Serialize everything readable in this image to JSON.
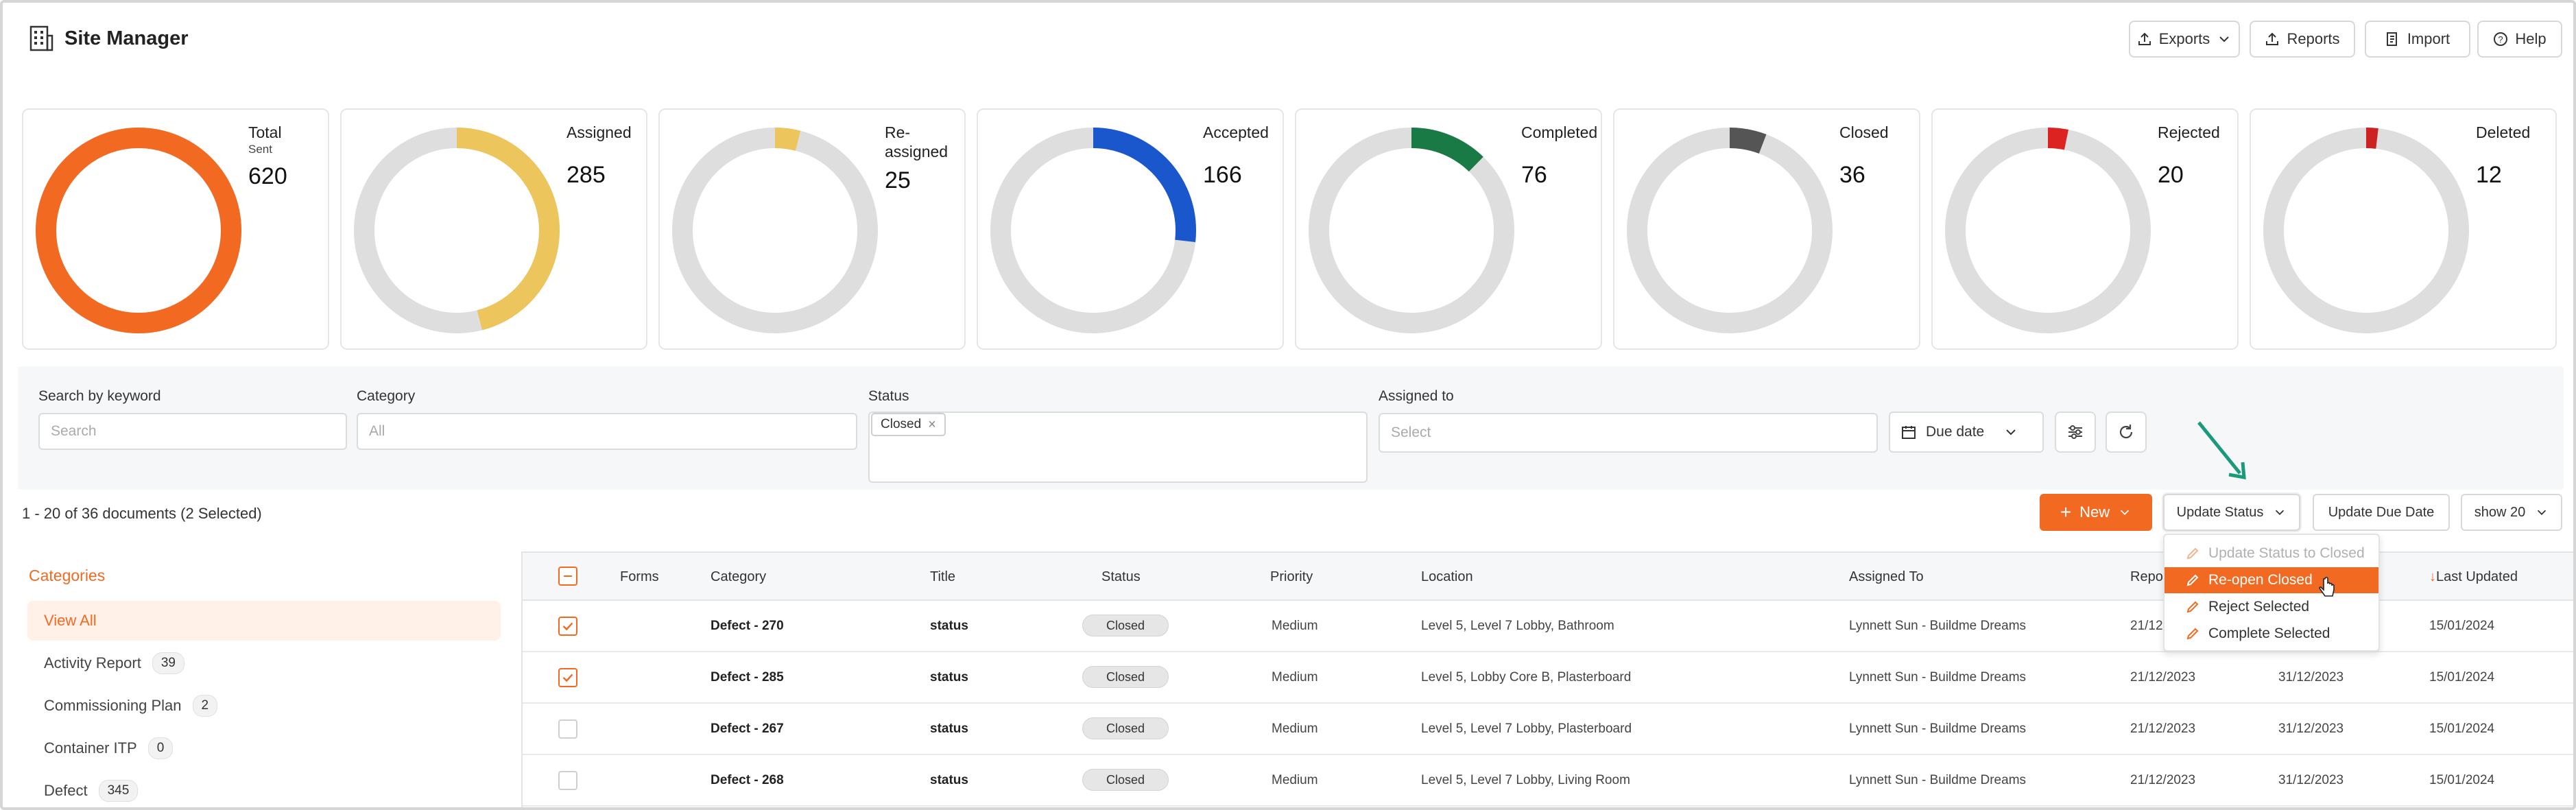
{
  "app": {
    "title": "Site Manager"
  },
  "header_buttons": {
    "exports": "Exports",
    "reports": "Reports",
    "import": "Import",
    "help": "Help"
  },
  "stats": [
    {
      "label": "Total",
      "sub": "Sent",
      "value": "620",
      "fraction": 1.0,
      "color": "#f26a21"
    },
    {
      "label": "Assigned",
      "value": "285",
      "fraction": 0.46,
      "color": "#ecc65c"
    },
    {
      "label": "Re-",
      "label2": "assigned",
      "value": "25",
      "fraction": 0.04,
      "color": "#ecc65c"
    },
    {
      "label": "Accepted",
      "value": "166",
      "fraction": 0.268,
      "color": "#1a56cc"
    },
    {
      "label": "Completed",
      "value": "76",
      "fraction": 0.123,
      "color": "#1a7a45"
    },
    {
      "label": "Closed",
      "value": "36",
      "fraction": 0.058,
      "color": "#555555"
    },
    {
      "label": "Rejected",
      "value": "20",
      "fraction": 0.032,
      "color": "#dd2222"
    },
    {
      "label": "Deleted",
      "value": "12",
      "fraction": 0.019,
      "color": "#cc2222"
    }
  ],
  "filters": {
    "keyword_label": "Search by keyword",
    "keyword_placeholder": "Search",
    "category_label": "Category",
    "category_placeholder": "All",
    "status_label": "Status",
    "status_chip": "Closed",
    "assigned_label": "Assigned to",
    "assigned_placeholder": "Select",
    "due_date": "Due date"
  },
  "toolbar": {
    "doc_count": "1 - 20 of 36 documents (2 Selected)",
    "new": "New",
    "update_status": "Update Status",
    "update_due_date": "Update Due Date",
    "show": "show 20"
  },
  "status_menu": [
    {
      "label": "Update Status to Closed",
      "state": "disabled"
    },
    {
      "label": "Re-open Closed",
      "state": "active"
    },
    {
      "label": "Reject Selected",
      "state": "normal"
    },
    {
      "label": "Complete Selected",
      "state": "normal"
    }
  ],
  "sidebar": {
    "title": "Categories",
    "items": [
      {
        "label": "View All",
        "count": null,
        "active": true
      },
      {
        "label": "Activity Report",
        "count": "39"
      },
      {
        "label": "Commissioning Plan",
        "count": "2"
      },
      {
        "label": "Container ITP",
        "count": "0"
      },
      {
        "label": "Defect",
        "count": "345"
      }
    ]
  },
  "table": {
    "columns": {
      "forms": "Forms",
      "category": "Category",
      "title": "Title",
      "status": "Status",
      "priority": "Priority",
      "location": "Location",
      "assigned_to": "Assigned To",
      "reported": "Repor",
      "last_updated": "Last Updated"
    },
    "rows": [
      {
        "checked": true,
        "category": "Defect - 270",
        "title": "status",
        "status": "Closed",
        "priority": "Medium",
        "location": "Level 5, Level 7 Lobby, Bathroom",
        "assigned_to": "Lynnett Sun - Buildme Dreams",
        "reported": "21/12",
        "due": "",
        "last_updated": "15/01/2024"
      },
      {
        "checked": true,
        "category": "Defect - 285",
        "title": "status",
        "status": "Closed",
        "priority": "Medium",
        "location": "Level 5, Lobby Core B, Plasterboard",
        "assigned_to": "Lynnett Sun - Buildme Dreams",
        "reported": "21/12/2023",
        "due": "31/12/2023",
        "last_updated": "15/01/2024"
      },
      {
        "checked": false,
        "category": "Defect - 267",
        "title": "status",
        "status": "Closed",
        "priority": "Medium",
        "location": "Level 5, Level 7 Lobby, Plasterboard",
        "assigned_to": "Lynnett Sun - Buildme Dreams",
        "reported": "21/12/2023",
        "due": "31/12/2023",
        "last_updated": "15/01/2024"
      },
      {
        "checked": false,
        "category": "Defect - 268",
        "title": "status",
        "status": "Closed",
        "priority": "Medium",
        "location": "Level 5, Level 7 Lobby, Living Room",
        "assigned_to": "Lynnett Sun - Buildme Dreams",
        "reported": "21/12/2023",
        "due": "31/12/2023",
        "last_updated": "15/01/2024"
      }
    ]
  },
  "colors": {
    "accent": "#f26a21",
    "arrow": "#1a9a7a"
  }
}
